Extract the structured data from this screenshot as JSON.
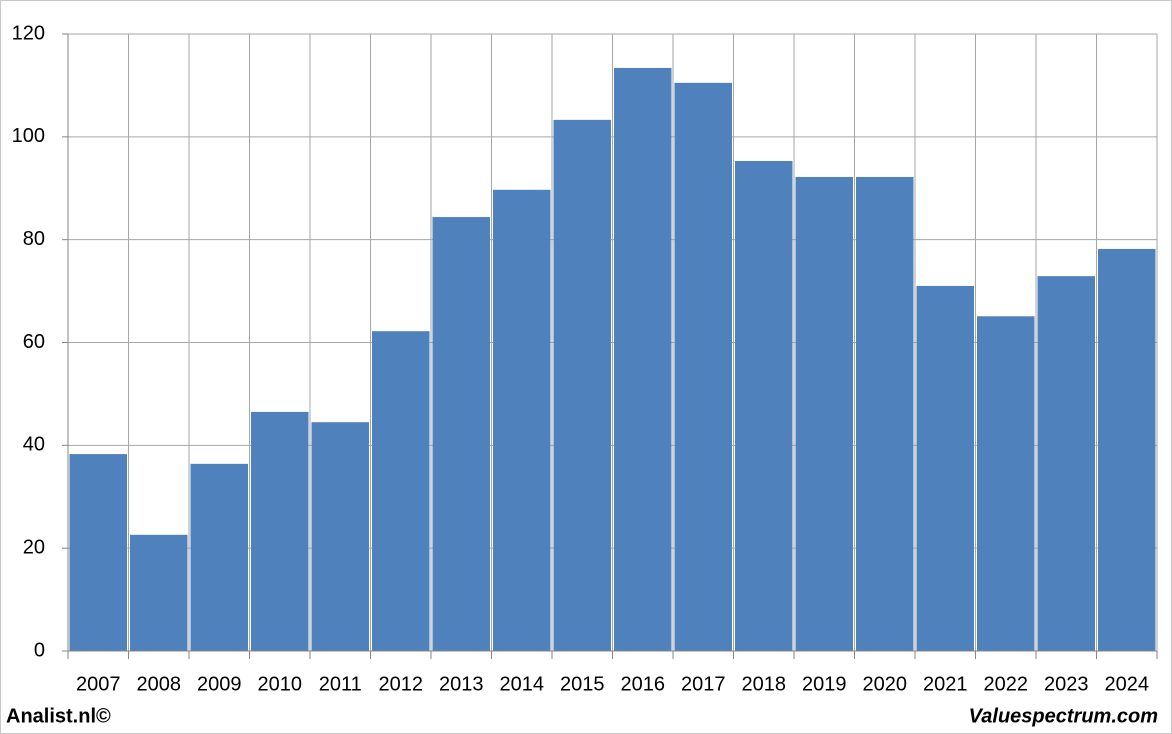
{
  "chart_data": {
    "type": "bar",
    "categories": [
      "2007",
      "2008",
      "2009",
      "2010",
      "2011",
      "2012",
      "2013",
      "2014",
      "2015",
      "2016",
      "2017",
      "2018",
      "2019",
      "2020",
      "2021",
      "2022",
      "2023",
      "2024"
    ],
    "values": [
      38.3,
      22.6,
      36.4,
      46.5,
      44.5,
      62.2,
      84.4,
      89.7,
      103.3,
      113.4,
      110.5,
      95.3,
      92.2,
      92.2,
      71.0,
      65.1,
      72.9,
      78.2
    ],
    "color": "#4f81bd",
    "ylim": [
      0,
      120
    ],
    "yticks": [
      0,
      20,
      40,
      60,
      80,
      100,
      120
    ],
    "grid": true,
    "credits": [
      "Analist.nl©",
      "Valuespectrum.com"
    ]
  }
}
